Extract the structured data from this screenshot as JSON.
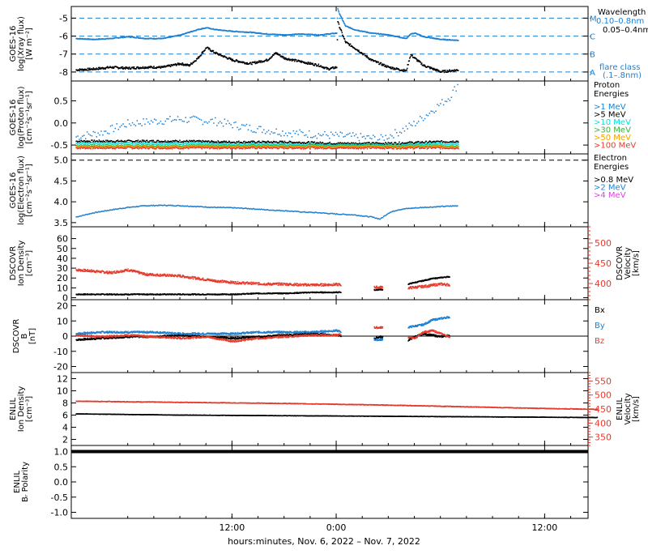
{
  "colors": {
    "black": "#000000",
    "blue": "#1f7fd0",
    "blue2": "#2b8ad6",
    "cyan": "#00e5e5",
    "green": "#3cb043",
    "orange": "#f4a300",
    "red": "#e53b2c",
    "magenta": "#e040e0",
    "grid": "#000000"
  },
  "time_axis": {
    "ticks": [
      "12:00",
      "0:00",
      "12:00"
    ],
    "label": "hours:minutes, Nov.  6, 2022 – Nov.  7, 2022"
  },
  "chart_data": [
    {
      "type": "scatter",
      "panel": "xray",
      "ylabel": [
        "GOES-16",
        "log(Xray flux)",
        "[W m⁻²]"
      ],
      "yticks": [
        "-5",
        "-6",
        "-7",
        "-8"
      ],
      "ylim": [
        -8.5,
        -4.35
      ],
      "flare_classes": [
        {
          "label": "M",
          "value": -5
        },
        {
          "label": "C",
          "value": -6
        },
        {
          "label": "B",
          "value": -7
        },
        {
          "label": "A",
          "value": -8
        }
      ],
      "legend_title": "Wavelength",
      "legend": [
        "0.10–0.8nm",
        "0.05–0.4nm"
      ],
      "note": [
        "flare class",
        "(.1–.8nm)"
      ],
      "series": [
        {
          "name": "0.10–0.8nm",
          "color": "blue",
          "x": [
            -6,
            -4,
            -2,
            0,
            2,
            4,
            6,
            8,
            9,
            10,
            12,
            14,
            16,
            18,
            20,
            22,
            24,
            24.1,
            24.2,
            25,
            26,
            28,
            30,
            32,
            32.5,
            33,
            34,
            36,
            38
          ],
          "y": [
            -6.1,
            -6.15,
            -6.1,
            -6.0,
            -6.1,
            -6.1,
            -5.9,
            -5.6,
            -5.5,
            -5.6,
            -5.7,
            -5.75,
            -5.85,
            -5.9,
            -5.85,
            -5.9,
            -5.8,
            -4.4,
            -4.6,
            -5.4,
            -5.6,
            -5.8,
            -5.9,
            -6.1,
            -5.85,
            -5.8,
            -6.0,
            -6.15,
            -6.2
          ]
        },
        {
          "name": "0.05–0.4nm",
          "color": "black",
          "x": [
            -6,
            -4,
            -2,
            0,
            2,
            4,
            6,
            7,
            8,
            9,
            10,
            12,
            14,
            16,
            17,
            18,
            20,
            22,
            23,
            24,
            24.1,
            24.2,
            25,
            26,
            28,
            30,
            32,
            32.5,
            33,
            34,
            36,
            38
          ],
          "y": [
            -7.85,
            -7.8,
            -7.7,
            -7.75,
            -7.7,
            -7.7,
            -7.5,
            -7.6,
            -7.2,
            -6.6,
            -6.9,
            -7.3,
            -7.5,
            -7.3,
            -6.9,
            -7.2,
            -7.4,
            -7.6,
            -7.8,
            -7.7,
            -5.1,
            -5.3,
            -6.3,
            -6.6,
            -7.3,
            -7.7,
            -7.9,
            -7.0,
            -7.2,
            -7.6,
            -7.95,
            -7.85
          ]
        }
      ]
    },
    {
      "type": "scatter",
      "panel": "proton",
      "ylabel": [
        "GOES-16",
        "log(Proton flux)",
        "[cm⁻²s⁻¹sr⁻¹]"
      ],
      "yticks": [
        "0.5",
        "0.0",
        "-0.5"
      ],
      "ylim": [
        -0.7,
        0.95
      ],
      "legend_title": [
        "Proton",
        "Energies"
      ],
      "legend": [
        ">1 MeV",
        ">5 MeV",
        ">10 MeV",
        ">30 MeV",
        ">50 MeV",
        ">100 MeV"
      ],
      "series": [
        {
          "name": ">1 MeV",
          "color": "blue",
          "x": [
            -6,
            -3,
            0,
            3,
            6,
            10,
            14,
            18,
            22,
            26,
            29,
            31,
            33,
            35,
            37,
            38
          ],
          "y": [
            -0.3,
            -0.2,
            0.0,
            0.05,
            0.1,
            0.05,
            -0.1,
            -0.2,
            -0.25,
            -0.3,
            -0.35,
            -0.2,
            0.0,
            0.3,
            0.6,
            0.9
          ]
        },
        {
          "name": ">5 MeV",
          "color": "black",
          "x": [
            -6,
            0,
            6,
            12,
            18,
            24,
            30,
            38
          ],
          "y": [
            -0.4,
            -0.4,
            -0.4,
            -0.42,
            -0.42,
            -0.45,
            -0.45,
            -0.4
          ]
        },
        {
          "name": ">10 MeV",
          "color": "cyan",
          "x": [
            -6,
            0,
            6,
            12,
            18,
            24,
            30,
            38
          ],
          "y": [
            -0.45,
            -0.45,
            -0.45,
            -0.47,
            -0.47,
            -0.48,
            -0.48,
            -0.45
          ]
        },
        {
          "name": ">30 MeV",
          "color": "green",
          "x": [
            -6,
            0,
            6,
            12,
            18,
            24,
            30,
            38
          ],
          "y": [
            -0.5,
            -0.5,
            -0.5,
            -0.5,
            -0.5,
            -0.5,
            -0.5,
            -0.5
          ]
        },
        {
          "name": ">50 MeV",
          "color": "orange",
          "x": [
            -6,
            0,
            6,
            12,
            18,
            24,
            30,
            38
          ],
          "y": [
            -0.52,
            -0.52,
            -0.52,
            -0.52,
            -0.52,
            -0.52,
            -0.52,
            -0.52
          ]
        },
        {
          "name": ">100 MeV",
          "color": "red",
          "x": [
            -6,
            0,
            6,
            12,
            18,
            24,
            30,
            38
          ],
          "y": [
            -0.55,
            -0.55,
            -0.55,
            -0.55,
            -0.55,
            -0.55,
            -0.55,
            -0.55
          ]
        }
      ]
    },
    {
      "type": "scatter",
      "panel": "electron",
      "ylabel": [
        "GOES-16",
        "log(Electron flux)",
        "[cm⁻²s⁻¹sr⁻¹]"
      ],
      "yticks": [
        "5.0",
        "4.5",
        "4.0",
        "3.5"
      ],
      "ylim": [
        3.4,
        5.15
      ],
      "reference_line": 5.0,
      "legend_title": [
        "Electron",
        "Energies"
      ],
      "legend": [
        ">0.8 MeV",
        ">2 MeV",
        ">4 MeV"
      ],
      "series": [
        {
          "name": ">2 MeV",
          "color": "blue",
          "x": [
            -6,
            -4,
            -2,
            0,
            2,
            4,
            6,
            8,
            10,
            12,
            14,
            16,
            18,
            20,
            22,
            24,
            26,
            28,
            29,
            30,
            31,
            32,
            34,
            36,
            38
          ],
          "y": [
            3.65,
            3.75,
            3.82,
            3.88,
            3.92,
            3.93,
            3.92,
            3.9,
            3.88,
            3.87,
            3.85,
            3.82,
            3.8,
            3.77,
            3.75,
            3.72,
            3.7,
            3.65,
            3.6,
            3.75,
            3.82,
            3.85,
            3.88,
            3.9,
            3.92
          ]
        }
      ]
    },
    {
      "type": "scatter",
      "panel": "dscovr-plasma",
      "ylabel": [
        "DSCOVR",
        "Ion Density",
        "[cm⁻³]"
      ],
      "yticks": [
        "60",
        "50",
        "40",
        "30",
        "20",
        "10",
        "0"
      ],
      "ylim": [
        -2,
        72
      ],
      "ylabel2": [
        "DSCOVR",
        "Velocity",
        "[km/s]"
      ],
      "yticks2": [
        "500",
        "450",
        "400"
      ],
      "ylim2": [
        360,
        540
      ],
      "series": [
        {
          "name": "Density",
          "color": "black",
          "axis": "left",
          "x": [
            -6,
            -3,
            0,
            3,
            6,
            9,
            12,
            15,
            18,
            21,
            24,
            28,
            29,
            30,
            32,
            33,
            34,
            35,
            36,
            37
          ],
          "y": [
            4,
            4,
            4,
            4,
            4,
            4,
            4,
            5,
            5,
            6,
            6,
            8,
            9,
            8,
            14,
            16,
            18,
            20,
            21,
            22
          ]
        },
        {
          "name": "Velocity",
          "color": "red",
          "axis": "right",
          "x": [
            -6,
            -4,
            -2,
            0,
            2,
            4,
            6,
            8,
            10,
            12,
            14,
            16,
            18,
            20,
            22,
            24,
            28,
            29,
            30,
            32,
            33,
            34,
            35,
            36,
            37
          ],
          "y": [
            435,
            432,
            428,
            435,
            424,
            422,
            420,
            414,
            408,
            404,
            402,
            400,
            400,
            398,
            398,
            399,
            392,
            392,
            393,
            390,
            392,
            394,
            397,
            400,
            398
          ]
        }
      ]
    },
    {
      "type": "scatter",
      "panel": "dscovr-mag",
      "ylabel": [
        "DSCOVR",
        "B",
        "[nT]"
      ],
      "yticks": [
        "20",
        "10",
        "0",
        "-10",
        "-20"
      ],
      "ylim": [
        -24,
        24
      ],
      "legend": [
        "Bx",
        "By",
        "Bz"
      ],
      "series": [
        {
          "name": "Bx",
          "color": "black",
          "x": [
            -6,
            -3,
            0,
            3,
            6,
            9,
            12,
            15,
            18,
            21,
            24,
            28,
            29,
            30,
            32,
            33,
            34,
            35,
            36,
            37
          ],
          "y": [
            -2,
            -1,
            0,
            0,
            1,
            0,
            -1,
            0,
            1,
            2,
            1,
            -2,
            0,
            -1,
            -3,
            0,
            2,
            1,
            0,
            1
          ]
        },
        {
          "name": "By",
          "color": "blue",
          "x": [
            -6,
            -3,
            0,
            3,
            6,
            9,
            12,
            15,
            18,
            21,
            24,
            28,
            29,
            30,
            32,
            33,
            34,
            35,
            36,
            37
          ],
          "y": [
            2,
            3,
            3,
            3,
            2,
            2,
            2,
            3,
            3,
            3,
            4,
            -2,
            -2,
            -1,
            6,
            7,
            8,
            11,
            12,
            13
          ]
        },
        {
          "name": "Bz",
          "color": "red",
          "x": [
            -6,
            -3,
            0,
            3,
            6,
            9,
            12,
            15,
            18,
            21,
            24,
            28,
            29,
            30,
            32,
            33,
            34,
            35,
            36,
            37
          ],
          "y": [
            1,
            0,
            1,
            0,
            -1,
            0,
            -3,
            -1,
            0,
            1,
            1,
            6,
            6,
            7,
            0,
            -1,
            3,
            4,
            2,
            0
          ]
        }
      ]
    },
    {
      "type": "line",
      "panel": "enlil-plasma",
      "ylabel": [
        "ENLIL",
        "Ion Density",
        "[cm⁻³]"
      ],
      "yticks": [
        "12",
        "10",
        "8",
        "6",
        "4",
        "2"
      ],
      "ylim": [
        1,
        13
      ],
      "ylabel2": [
        "ENLIL",
        "Velocity",
        "[km/s]"
      ],
      "yticks2": [
        "550",
        "500",
        "450",
        "400",
        "350"
      ],
      "ylim2": [
        320,
        580
      ],
      "series": [
        {
          "name": "Density",
          "color": "black",
          "axis": "left",
          "x": [
            -6,
            0,
            6,
            12,
            18,
            24,
            30,
            36,
            42,
            48,
            54
          ],
          "y": [
            6.3,
            6.2,
            6.1,
            6.05,
            6.0,
            5.95,
            5.9,
            5.85,
            5.8,
            5.75,
            5.7
          ]
        },
        {
          "name": "Velocity",
          "color": "red",
          "axis": "right",
          "x": [
            -6,
            0,
            6,
            12,
            18,
            24,
            30,
            36,
            42,
            48,
            54
          ],
          "y": [
            480,
            478,
            476,
            474,
            472,
            469,
            466,
            462,
            458,
            454,
            451
          ]
        }
      ]
    },
    {
      "type": "line",
      "panel": "enlil-polarity",
      "ylabel": [
        "ENLIL",
        "Bᵣ Polarity"
      ],
      "yticks": [
        "1.0",
        "0.5",
        "0.0",
        "-0.5",
        "-1.0"
      ],
      "ylim": [
        -1.2,
        1.2
      ],
      "series": [
        {
          "name": "Polarity",
          "color": "black",
          "x": [
            -6,
            54
          ],
          "y": [
            1.0,
            1.0
          ]
        }
      ]
    }
  ]
}
